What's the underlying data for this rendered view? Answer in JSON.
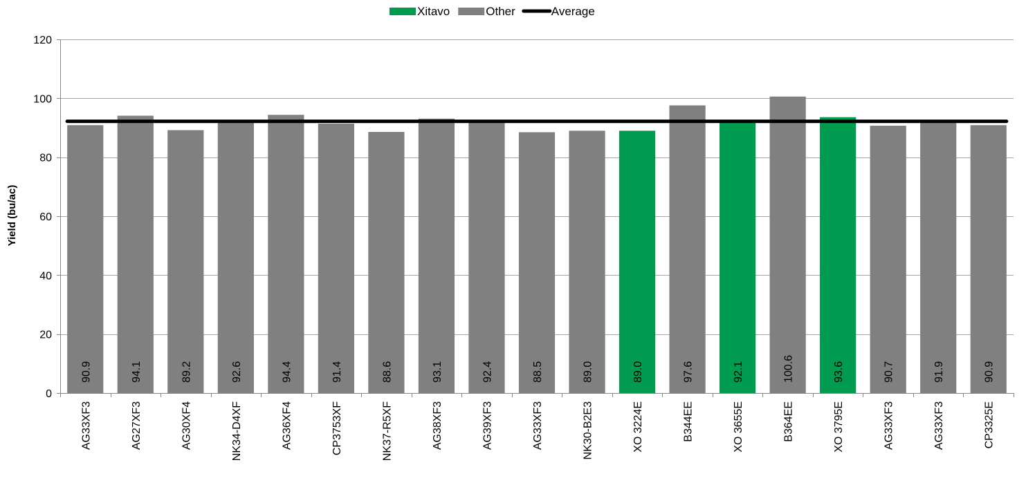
{
  "chart_data": {
    "type": "bar",
    "categories": [
      "AG33XF3",
      "AG27XF3",
      "AG30XF4",
      "NK34-D4XF",
      "AG36XF4",
      "CP3753XF",
      "NK37-R5XF",
      "AG38XF3",
      "AG39XF3",
      "AG33XF3",
      "NK30-B2E3",
      "XO 3224E",
      "B344EE",
      "XO 3655E",
      "B364EE",
      "XO 3795E",
      "AG33XF3",
      "AG33XF3",
      "CP3325E"
    ],
    "values": [
      90.9,
      94.1,
      89.2,
      92.6,
      94.4,
      91.4,
      88.6,
      93.1,
      92.4,
      88.5,
      89.0,
      89.0,
      97.6,
      92.1,
      100.6,
      93.6,
      90.7,
      91.9,
      90.9
    ],
    "value_labels": [
      "90.9",
      "94.1",
      "89.2",
      "92.6",
      "94.4",
      "91.4",
      "88.6",
      "93.1",
      "92.4",
      "88.5",
      "89.0",
      "89.0",
      "97.6",
      "92.1",
      "100.6",
      "93.6",
      "90.7",
      "91.9",
      "90.9"
    ],
    "groups": [
      "Other",
      "Other",
      "Other",
      "Other",
      "Other",
      "Other",
      "Other",
      "Other",
      "Other",
      "Other",
      "Other",
      "Xitavo",
      "Other",
      "Xitavo",
      "Other",
      "Xitavo",
      "Other",
      "Other",
      "Other"
    ],
    "average": 92.2,
    "ylabel": "Yield (bu/ac)",
    "ylim": [
      0,
      120
    ],
    "yticks": [
      0,
      20,
      40,
      60,
      80,
      100,
      120
    ],
    "grid": true,
    "legend_position": "top-center",
    "legend": [
      {
        "label": "Xitavo",
        "kind": "box",
        "color": "#009b4e"
      },
      {
        "label": "Other",
        "kind": "box",
        "color": "#808080"
      },
      {
        "label": "Average",
        "kind": "line",
        "color": "#000000"
      }
    ],
    "colors": {
      "Xitavo": "#009b4e",
      "Other": "#808080",
      "average": "#000000",
      "grid": "#a6a6a6",
      "axis": "#868686"
    }
  }
}
